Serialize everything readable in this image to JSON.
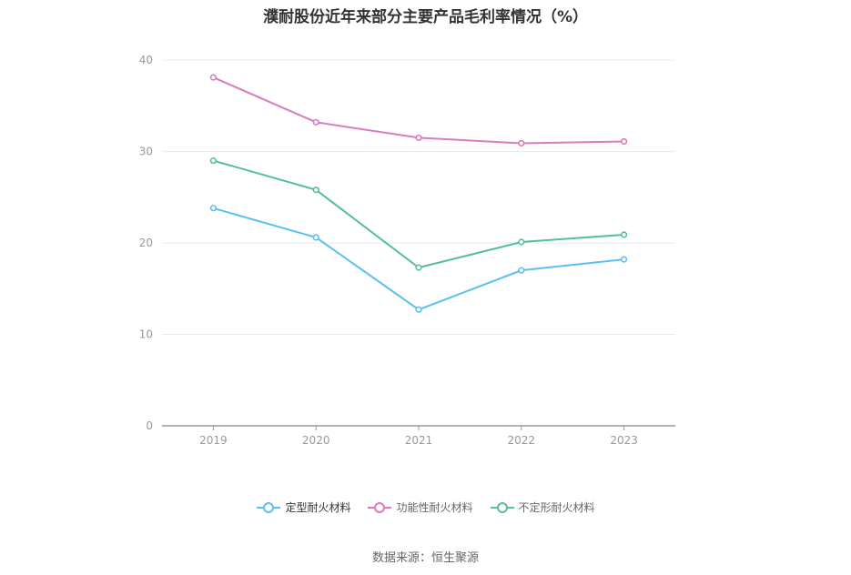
{
  "title": "濮耐股份近年来部分主要产品毛利率情况（%）",
  "source": "数据来源：恒生聚源",
  "chart_data": {
    "type": "line",
    "title": "濮耐股份近年来部分主要产品毛利率情况（%）",
    "x": [
      "2019",
      "2020",
      "2021",
      "2022",
      "2023"
    ],
    "ylim": [
      0,
      40
    ],
    "yticks": [
      0,
      10,
      20,
      30,
      40
    ],
    "grid": true,
    "legend_position": "bottom",
    "series": [
      {
        "name": "定型耐火材料",
        "color": "#5bc0f0",
        "values": [
          23.8,
          20.6,
          12.7,
          17.0,
          18.2
        ]
      },
      {
        "name": "功能性耐火材料",
        "color": "#d97bbd",
        "values": [
          38.1,
          33.2,
          31.5,
          30.9,
          31.1
        ]
      },
      {
        "name": "不定形耐火材料",
        "color": "#55bda0",
        "values": [
          29.0,
          25.8,
          17.3,
          20.1,
          20.9
        ]
      }
    ]
  }
}
